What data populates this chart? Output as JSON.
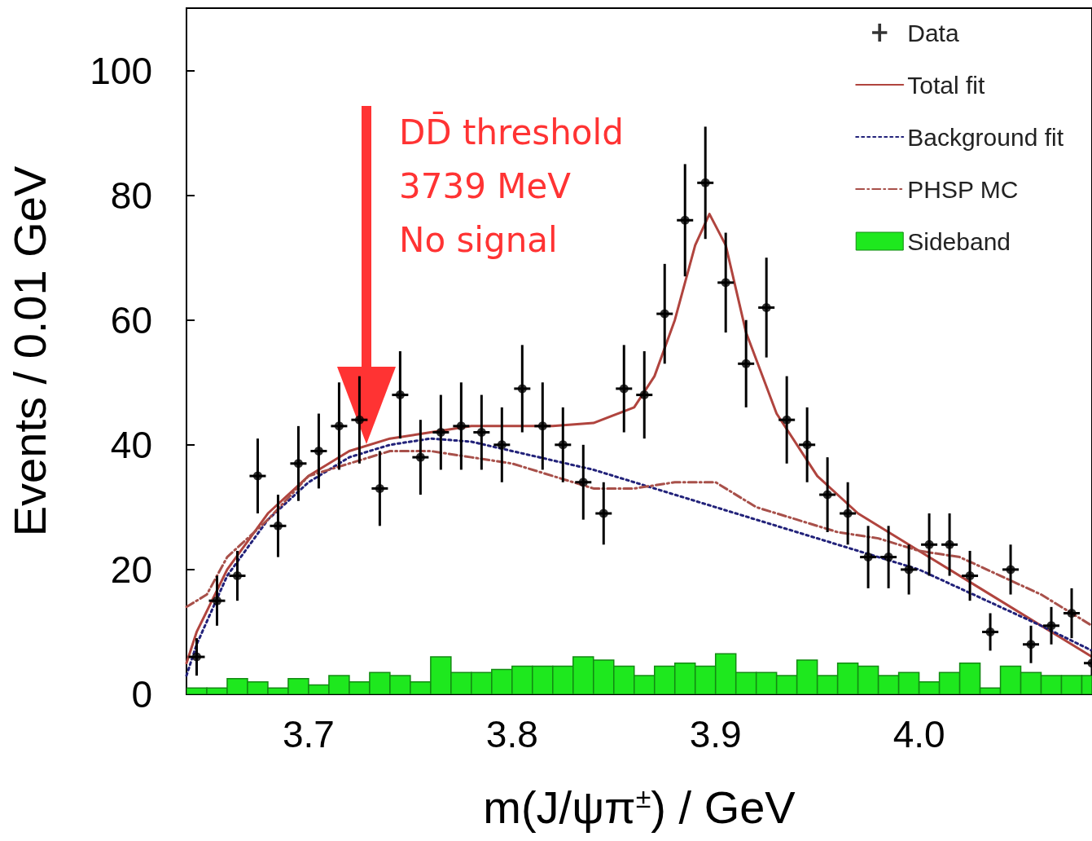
{
  "chart_data": {
    "type": "scatter",
    "xlabel": "m(J/ψπ$^{±}$) / GeV",
    "ylabel": "Events / 0.01 GeV",
    "xlim": [
      3.64,
      4.085
    ],
    "xticks": [
      3.7,
      3.8,
      3.9,
      {
        "value": 4,
        "label": "4.0"
      }
    ],
    "ylim": [
      0,
      110
    ],
    "yticks": [
      0,
      20,
      40,
      60,
      80,
      100
    ],
    "grid": false,
    "legend": "top right",
    "series": [
      {
        "name": "Data",
        "color": "#000000",
        "marker": "circle",
        "x": [
          3.645,
          3.655,
          3.665,
          3.675,
          3.685,
          3.695,
          3.705,
          3.715,
          3.725,
          3.735,
          3.745,
          3.755,
          3.765,
          3.775,
          3.785,
          3.795,
          3.805,
          3.815,
          3.825,
          3.835,
          3.845,
          3.855,
          3.865,
          3.875,
          3.885,
          3.895,
          3.905,
          3.915,
          3.925,
          3.935,
          3.945,
          3.955,
          3.965,
          3.975,
          3.985,
          3.995,
          4.005,
          4.015,
          4.025,
          4.035,
          4.045,
          4.055,
          4.065,
          4.075,
          4.085
        ],
        "values": [
          6,
          15,
          19,
          35,
          27,
          37,
          39,
          43,
          44,
          33,
          48,
          38,
          42,
          43,
          42,
          40,
          49,
          43,
          40,
          34,
          29,
          49,
          48,
          61,
          76,
          82,
          66,
          53,
          62,
          44,
          40,
          32,
          29,
          22,
          22,
          20,
          24,
          24,
          19,
          10,
          20,
          8,
          11,
          13,
          5
        ],
        "errors": [
          3,
          4,
          4,
          6,
          5,
          6,
          6,
          7,
          7,
          6,
          7,
          6,
          6,
          7,
          6,
          6,
          7,
          7,
          6,
          6,
          5,
          7,
          7,
          8,
          9,
          9,
          8,
          7,
          8,
          7,
          6,
          6,
          5,
          5,
          5,
          4,
          5,
          5,
          4,
          3,
          4,
          3,
          3,
          4,
          2
        ],
        "xerrors": [
          0.004,
          0.004,
          0.004,
          0.004,
          0.004,
          0.004,
          0.004,
          0.004,
          0.004,
          0.004,
          0.004,
          0.004,
          0.004,
          0.004,
          0.004,
          0.004,
          0.004,
          0.004,
          0.004,
          0.004,
          0.004,
          0.004,
          0.004,
          0.004,
          0.004,
          0.004,
          0.004,
          0.004,
          0.004,
          0.004,
          0.004,
          0.004,
          0.004,
          0.004,
          0.004,
          0.004,
          0.004,
          0.004,
          0.004,
          0.004,
          0.004,
          0.004,
          0.004,
          0.004,
          0.004
        ]
      },
      {
        "name": "Total fit",
        "type": "line",
        "color": "#b0443e",
        "line_style": "solid",
        "marker": "none",
        "x": [
          3.64,
          3.645,
          3.66,
          3.68,
          3.7,
          3.72,
          3.74,
          3.76,
          3.78,
          3.8,
          3.82,
          3.84,
          3.86,
          3.87,
          3.88,
          3.89,
          3.897,
          3.905,
          3.915,
          3.93,
          3.95,
          3.97,
          4.0,
          4.03,
          4.06,
          4.085
        ],
        "values": [
          5,
          10,
          20,
          29,
          35,
          39,
          41,
          42,
          43,
          43,
          43,
          43.5,
          46,
          51,
          60,
          72,
          77,
          72,
          58,
          45,
          35,
          29,
          23,
          17,
          11,
          6
        ]
      },
      {
        "name": "Background fit",
        "type": "line",
        "color": "#22227a",
        "line_style": "dotted",
        "marker": "none",
        "x": [
          3.64,
          3.645,
          3.66,
          3.68,
          3.7,
          3.72,
          3.74,
          3.76,
          3.78,
          3.8,
          3.82,
          3.84,
          3.86,
          3.88,
          3.9,
          3.92,
          3.94,
          3.96,
          3.98,
          4.0,
          4.02,
          4.04,
          4.06,
          4.085
        ],
        "values": [
          3,
          8,
          19,
          28,
          34,
          38,
          40,
          41,
          40.5,
          39,
          37.5,
          36,
          34,
          32,
          30,
          28,
          26,
          24,
          22,
          20,
          17,
          14,
          11,
          7
        ]
      },
      {
        "name": "PHSP MC",
        "type": "line",
        "color": "#a8504a",
        "line_style": "dashed",
        "marker": "none",
        "x": [
          3.64,
          3.65,
          3.66,
          3.68,
          3.7,
          3.72,
          3.74,
          3.76,
          3.78,
          3.8,
          3.82,
          3.84,
          3.86,
          3.88,
          3.9,
          3.92,
          3.94,
          3.96,
          3.98,
          4.0,
          4.02,
          4.04,
          4.06,
          4.085
        ],
        "values": [
          14,
          16,
          22,
          28,
          35,
          37,
          39,
          39,
          38,
          37,
          35,
          33,
          33,
          34,
          34,
          30,
          28,
          26,
          25,
          23,
          22,
          19,
          16,
          11
        ]
      },
      {
        "name": "Sideband",
        "type": "histogram",
        "color": "#1ee81e",
        "bins": [
          3.64,
          3.65,
          3.66,
          3.67,
          3.68,
          3.69,
          3.7,
          3.71,
          3.72,
          3.73,
          3.74,
          3.75,
          3.76,
          3.77,
          3.78,
          3.79,
          3.8,
          3.81,
          3.82,
          3.83,
          3.84,
          3.85,
          3.86,
          3.87,
          3.88,
          3.89,
          3.9,
          3.91,
          3.92,
          3.93,
          3.94,
          3.95,
          3.96,
          3.97,
          3.98,
          3.99,
          4.0,
          4.01,
          4.02,
          4.03,
          4.04,
          4.05,
          4.06,
          4.07,
          4.08,
          4.085
        ],
        "values": [
          1,
          1,
          2.5,
          2,
          1,
          2.5,
          1.5,
          3,
          2,
          3.5,
          3,
          2,
          6,
          3.5,
          3.5,
          4,
          4.5,
          4.5,
          4.5,
          6,
          5.5,
          4.5,
          3,
          4.5,
          5,
          4.5,
          6.5,
          3.5,
          3.5,
          3,
          5.5,
          3,
          5,
          4.5,
          3,
          3.5,
          2,
          3.5,
          5,
          1,
          4.5,
          3.5,
          3,
          3,
          3
        ]
      }
    ],
    "annotations": [
      "DD̄ threshold\n3739 MeV\nNo signal"
    ]
  }
}
